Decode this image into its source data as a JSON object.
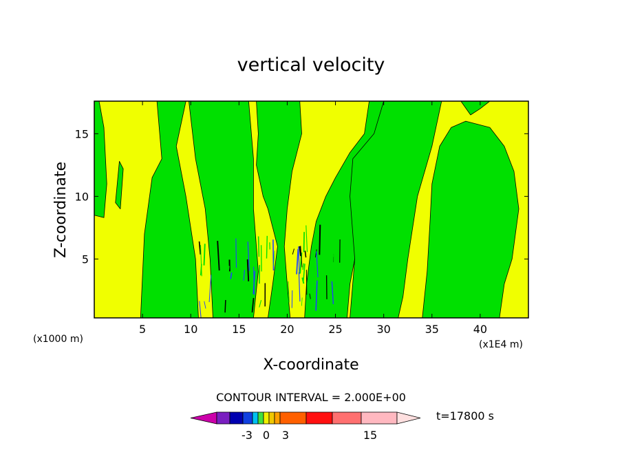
{
  "chart_data": {
    "type": "heatmap",
    "title": "vertical velocity",
    "xlabel": "X-coordinate",
    "ylabel": "Z-coordinate",
    "x_unit_note": "(x1000 m)",
    "y_unit_note": "(x1E4 m)",
    "xlim": [
      0,
      45
    ],
    "ylim": [
      0.3,
      17.6
    ],
    "x_ticks": [
      5,
      10,
      15,
      20,
      25,
      30,
      35,
      40
    ],
    "y_ticks": [
      5,
      10,
      15
    ],
    "grid": false,
    "contour_interval_text": "CONTOUR INTERVAL = 2.000E+00",
    "time_text": "t=17800 s",
    "colorbar": {
      "colors": [
        "#cc00aa",
        "#7a1fc0",
        "#0000b0",
        "#1040e0",
        "#00c0f0",
        "#40e040",
        "#f0f000",
        "#f0c800",
        "#ffa000",
        "#ff6000",
        "#ff1010",
        "#ff7070",
        "#ffb8c0",
        "#ffe0e0"
      ],
      "tick_labels": [
        "-3",
        "0",
        "3",
        "15"
      ]
    },
    "regions": [
      {
        "color": "green",
        "value_range": [
          -2,
          0
        ],
        "polygon": [
          [
            0,
            8.5
          ],
          [
            1,
            8.3
          ],
          [
            1.3,
            11
          ],
          [
            1,
            15.5
          ],
          [
            0.5,
            17.6
          ],
          [
            0,
            17.6
          ]
        ]
      },
      {
        "color": "green",
        "value_range": [
          -2,
          0
        ],
        "polygon": [
          [
            2.2,
            9.5
          ],
          [
            2.6,
            12.8
          ],
          [
            3,
            12.2
          ],
          [
            2.7,
            9
          ]
        ]
      },
      {
        "color": "green",
        "value_range": [
          -2,
          0
        ],
        "polygon": [
          [
            4.8,
            0.3
          ],
          [
            5.2,
            7
          ],
          [
            6,
            11.5
          ],
          [
            7,
            13
          ],
          [
            6.5,
            17.6
          ],
          [
            9.5,
            17.6
          ],
          [
            8.5,
            14
          ],
          [
            9.5,
            10
          ],
          [
            10.5,
            5
          ],
          [
            10.8,
            0.3
          ]
        ]
      },
      {
        "color": "green",
        "value_range": [
          -2,
          0
        ],
        "polygon": [
          [
            9.8,
            17.6
          ],
          [
            10.5,
            13
          ],
          [
            11.5,
            9
          ],
          [
            12,
            5
          ],
          [
            12.3,
            0.3
          ],
          [
            16.5,
            0.3
          ],
          [
            17,
            4
          ],
          [
            16.5,
            9
          ],
          [
            16.5,
            13
          ],
          [
            16,
            17.6
          ]
        ]
      },
      {
        "color": "green",
        "value_range": [
          -2,
          0
        ],
        "polygon": [
          [
            18,
            0.3
          ],
          [
            18.5,
            3
          ],
          [
            19,
            6
          ],
          [
            18,
            9
          ],
          [
            17.5,
            10
          ],
          [
            16.8,
            12.5
          ],
          [
            17,
            15
          ],
          [
            16.8,
            17.6
          ],
          [
            21.3,
            17.6
          ],
          [
            21.5,
            15
          ],
          [
            20.5,
            12
          ],
          [
            20,
            9
          ],
          [
            19.7,
            6
          ],
          [
            20,
            3
          ],
          [
            20.3,
            0.3
          ]
        ]
      },
      {
        "color": "green",
        "value_range": [
          -2,
          0
        ],
        "polygon": [
          [
            21.8,
            0.3
          ],
          [
            22,
            3
          ],
          [
            22.5,
            6
          ],
          [
            23,
            8
          ],
          [
            24,
            10
          ],
          [
            25,
            11.5
          ],
          [
            26.5,
            13.5
          ],
          [
            28,
            15
          ],
          [
            28.5,
            17.6
          ],
          [
            30.5,
            17.6
          ],
          [
            30,
            15
          ],
          [
            29.3,
            13
          ],
          [
            28.7,
            11
          ],
          [
            28.3,
            9
          ],
          [
            27.6,
            7
          ],
          [
            27,
            5
          ],
          [
            26.5,
            3
          ],
          [
            26.2,
            0.3
          ]
        ]
      },
      {
        "color": "green",
        "value_range": [
          -2,
          0
        ],
        "polygon": [
          [
            26.5,
            0.3
          ],
          [
            27,
            5
          ],
          [
            26.5,
            10
          ],
          [
            26.8,
            13
          ],
          [
            29,
            15
          ],
          [
            30,
            17.6
          ],
          [
            36,
            17.6
          ],
          [
            35,
            14
          ],
          [
            33.5,
            10
          ],
          [
            32.5,
            5
          ],
          [
            32,
            2
          ],
          [
            31.5,
            0.3
          ]
        ]
      },
      {
        "color": "green",
        "value_range": [
          -2,
          0
        ],
        "polygon": [
          [
            34,
            0.3
          ],
          [
            34.5,
            4
          ],
          [
            34.8,
            8
          ],
          [
            35,
            11
          ],
          [
            35.8,
            14
          ],
          [
            37,
            15.5
          ],
          [
            38.5,
            16
          ],
          [
            41,
            15.5
          ],
          [
            42.5,
            14
          ],
          [
            43.5,
            12
          ],
          [
            44,
            9
          ],
          [
            43.3,
            5
          ],
          [
            42.5,
            3
          ],
          [
            42,
            0.3
          ]
        ]
      },
      {
        "color": "green",
        "value_range": [
          -2,
          0
        ],
        "polygon": [
          [
            38,
            17.6
          ],
          [
            39,
            16.5
          ],
          [
            40,
            17
          ],
          [
            41,
            17.6
          ]
        ]
      }
    ]
  }
}
